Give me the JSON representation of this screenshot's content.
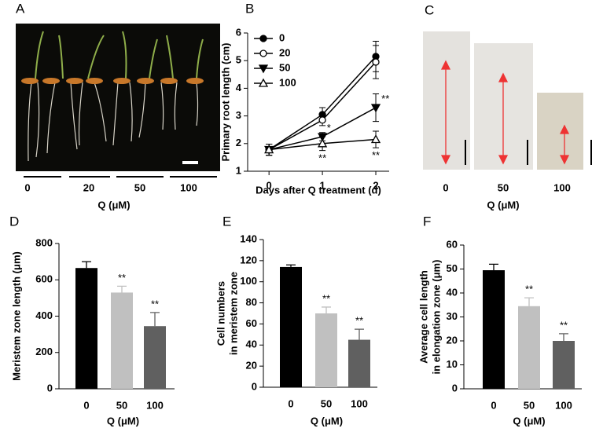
{
  "images": [
    {
      "label": "A",
      "categories": [
        "0",
        "20",
        "50",
        "100"
      ],
      "xlabel": "Q (μM)"
    },
    {
      "label": "C",
      "categories": [
        "0",
        "50",
        "100"
      ],
      "xlabel": "Q (μM)"
    }
  ],
  "chart_data": [
    {
      "type": "line",
      "label": "B",
      "xlabel": "Days after Q treatment (d)",
      "ylabel": [
        "Primary root length (cm)"
      ],
      "x": [
        0,
        1,
        2
      ],
      "xlim": [
        -0.4,
        2.25
      ],
      "xticks": [
        0,
        1,
        2
      ],
      "ylim": [
        1,
        6
      ],
      "yticks": [
        1,
        2,
        3,
        4,
        5,
        6
      ],
      "series": [
        {
          "name": "0",
          "color": "#000000",
          "marker": "circle-filled",
          "values": [
            1.78,
            3.05,
            5.15
          ],
          "errors": [
            0.2,
            0.25,
            0.55
          ]
        },
        {
          "name": "20",
          "color": "#000000",
          "marker": "circle-open",
          "values": [
            1.78,
            2.85,
            4.95
          ],
          "errors": [
            0.2,
            0.2,
            0.6
          ]
        },
        {
          "name": "50",
          "color": "#000000",
          "marker": "triangle-down-filled",
          "values": [
            1.78,
            2.25,
            3.3
          ],
          "errors": [
            0.2,
            0.15,
            0.5
          ]
        },
        {
          "name": "100",
          "color": "#000000",
          "marker": "triangle-up-open",
          "values": [
            1.78,
            2.0,
            2.15
          ],
          "errors": [
            0.2,
            0.25,
            0.3
          ]
        }
      ],
      "annotations": [
        "*",
        "**",
        "**",
        "**"
      ],
      "legend": "upper left"
    },
    {
      "type": "bar",
      "label": "D",
      "xlabel": "Q (μM)",
      "ylabel": [
        "Meristem zone length (μm)"
      ],
      "categories": [
        "0",
        "50",
        "100"
      ],
      "values": [
        665,
        530,
        345
      ],
      "errors": [
        35,
        35,
        75
      ],
      "colors": [
        "#000000",
        "#c0c0c0",
        "#606060"
      ],
      "ylim": [
        0,
        800
      ],
      "yticks": [
        0,
        200,
        400,
        600,
        800
      ],
      "annotations": [
        null,
        "**",
        "**"
      ]
    },
    {
      "type": "bar",
      "label": "E",
      "xlabel": "Q (μM)",
      "ylabel": [
        "Cell numbers",
        "in meristem zone"
      ],
      "categories": [
        "0",
        "50",
        "100"
      ],
      "values": [
        114,
        70,
        45
      ],
      "errors": [
        2,
        6,
        10
      ],
      "colors": [
        "#000000",
        "#c0c0c0",
        "#606060"
      ],
      "ylim": [
        0,
        140
      ],
      "yticks": [
        0,
        20,
        40,
        60,
        80,
        100,
        120,
        140
      ],
      "annotations": [
        null,
        "**",
        "**"
      ]
    },
    {
      "type": "bar",
      "label": "F",
      "xlabel": "Q (μM)",
      "ylabel": [
        "Average cell length",
        "in elongation zone (μm)"
      ],
      "categories": [
        "0",
        "50",
        "100"
      ],
      "values": [
        49.5,
        34.5,
        20
      ],
      "errors": [
        2.5,
        3.5,
        3
      ],
      "colors": [
        "#000000",
        "#c0c0c0",
        "#606060"
      ],
      "ylim": [
        0,
        60
      ],
      "yticks": [
        0,
        10,
        20,
        30,
        40,
        50,
        60
      ],
      "annotations": [
        null,
        "**",
        "**"
      ]
    }
  ]
}
